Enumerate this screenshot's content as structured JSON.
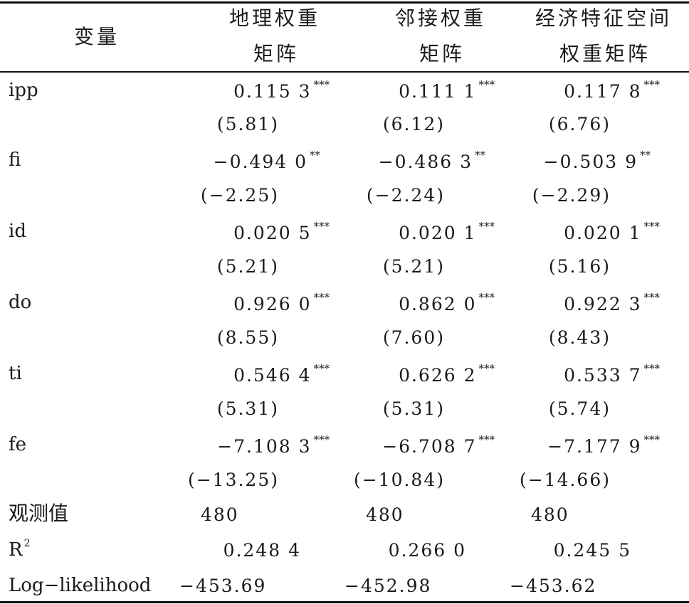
{
  "header": {
    "var_label": "变量",
    "col1": [
      "地理权重",
      "矩阵"
    ],
    "col2": [
      "邻接权重",
      "矩阵"
    ],
    "col3": [
      "经济特征空间",
      "权重矩阵"
    ]
  },
  "rows": [
    {
      "label": "ipp",
      "coef": [
        "0.115 3",
        "0.111 1",
        "0.117 8"
      ],
      "stars": [
        "***",
        "***",
        "***"
      ],
      "t": [
        "(5.81)",
        "(6.12)",
        "(6.76)"
      ]
    },
    {
      "label": "fi",
      "coef": [
        "−0.494 0",
        "−0.486 3",
        "−0.503 9"
      ],
      "stars": [
        "**",
        "**",
        "**"
      ],
      "t": [
        "(−2.25)",
        "(−2.24)",
        "(−2.29)"
      ]
    },
    {
      "label": "id",
      "coef": [
        "0.020 5",
        "0.020 1",
        "0.020 1"
      ],
      "stars": [
        "***",
        "***",
        "***"
      ],
      "t": [
        "(5.21)",
        "(5.21)",
        "(5.16)"
      ]
    },
    {
      "label": "do",
      "coef": [
        "0.926 0",
        "0.862 0",
        "0.922 3"
      ],
      "stars": [
        "***",
        "***",
        "***"
      ],
      "t": [
        "(8.55)",
        "(7.60)",
        "(8.43)"
      ]
    },
    {
      "label": "ti",
      "coef": [
        "0.546 4",
        "0.626 2",
        "0.533 7"
      ],
      "stars": [
        "***",
        "***",
        "***"
      ],
      "t": [
        "(5.31)",
        "(5.31)",
        "(5.74)"
      ]
    },
    {
      "label": "fe",
      "coef": [
        "−7.108 3",
        "−6.708 7",
        "−7.177 9"
      ],
      "stars": [
        "***",
        "***",
        "***"
      ],
      "t": [
        "(−13.25)",
        "(−10.84)",
        "(−14.66)"
      ]
    }
  ],
  "footer": {
    "obs": {
      "label": "观测值",
      "values": [
        "480",
        "480",
        "480"
      ]
    },
    "r2": {
      "label": "R",
      "sup": "2",
      "values": [
        "0.248 4",
        "0.266 0",
        "0.245 5"
      ]
    },
    "ll": {
      "label": "Log−likelihood",
      "values": [
        "−453.69",
        "−452.98",
        "−453.62"
      ]
    }
  }
}
